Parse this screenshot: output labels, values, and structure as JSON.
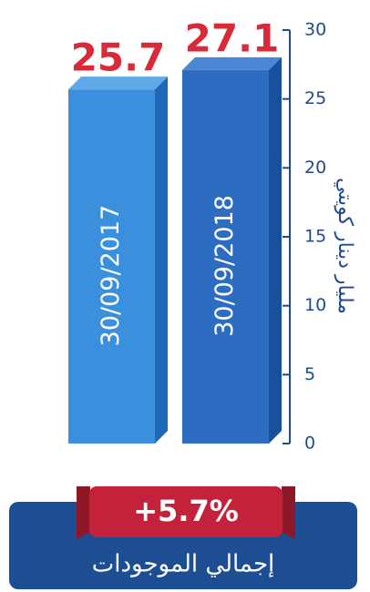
{
  "chart_data": {
    "type": "bar",
    "categories": [
      "30/09/2017",
      "30/09/2018"
    ],
    "values": [
      25.7,
      27.1
    ],
    "value_labels": [
      "25.7",
      "27.1"
    ],
    "ylabel": "مليار دينار كويتي",
    "ylim": [
      0,
      30
    ],
    "yticks": [
      0,
      5,
      10,
      15,
      20,
      25,
      30
    ],
    "grid": false,
    "colors": {
      "bar_2017_front": "#3a90dc",
      "bar_2017_side": "#1f68b8",
      "bar_2017_top": "#5fa9e8",
      "bar_2018_front": "#2c6dc2",
      "bar_2018_side": "#1a4f9a",
      "bar_2018_top": "#4a86d4",
      "value_label": "#d92a3a",
      "axis": "#1f4a90"
    }
  },
  "summary": {
    "change": "+5.7%",
    "caption": "إجمالي الموجودات",
    "badge_color": "#c4213a",
    "panel_color": "#1d4e93"
  }
}
